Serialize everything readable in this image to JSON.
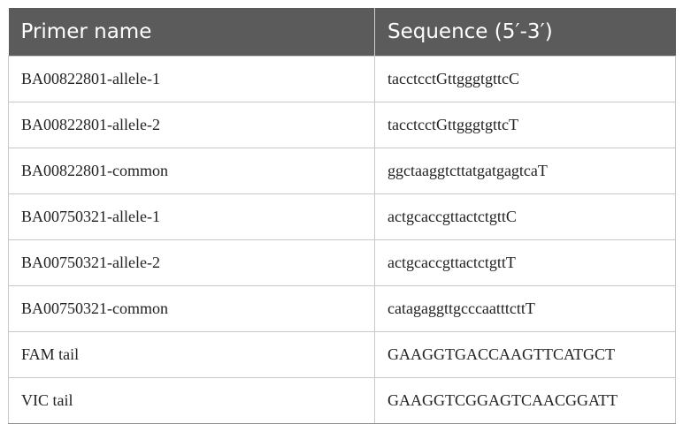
{
  "table": {
    "headers": [
      "Primer name",
      "Sequence (5′-3′)"
    ],
    "rows": [
      {
        "name": "BA00822801-allele-1",
        "sequence": "tacctcctGttgggtgttcC"
      },
      {
        "name": "BA00822801-allele-2",
        "sequence": "tacctcctGttgggtgttcT"
      },
      {
        "name": "BA00822801-common",
        "sequence": "ggctaaggtcttatgatgagtcaT"
      },
      {
        "name": "BA00750321-allele-1",
        "sequence": "actgcaccgttactctgttC"
      },
      {
        "name": "BA00750321-allele-2",
        "sequence": "actgcaccgttactctgttT"
      },
      {
        "name": "BA00750321-common",
        "sequence": "catagaggttgcccaatttcttT"
      },
      {
        "name": "FAM tail",
        "sequence": "GAAGGTGACCAAGTTCATGCT"
      },
      {
        "name": "VIC tail",
        "sequence": "GAAGGTCGGAGTCAACGGATT"
      }
    ]
  },
  "colors": {
    "header_background": "#5b5b5b",
    "header_text": "#ffffff",
    "cell_border": "#c8c8c8"
  }
}
